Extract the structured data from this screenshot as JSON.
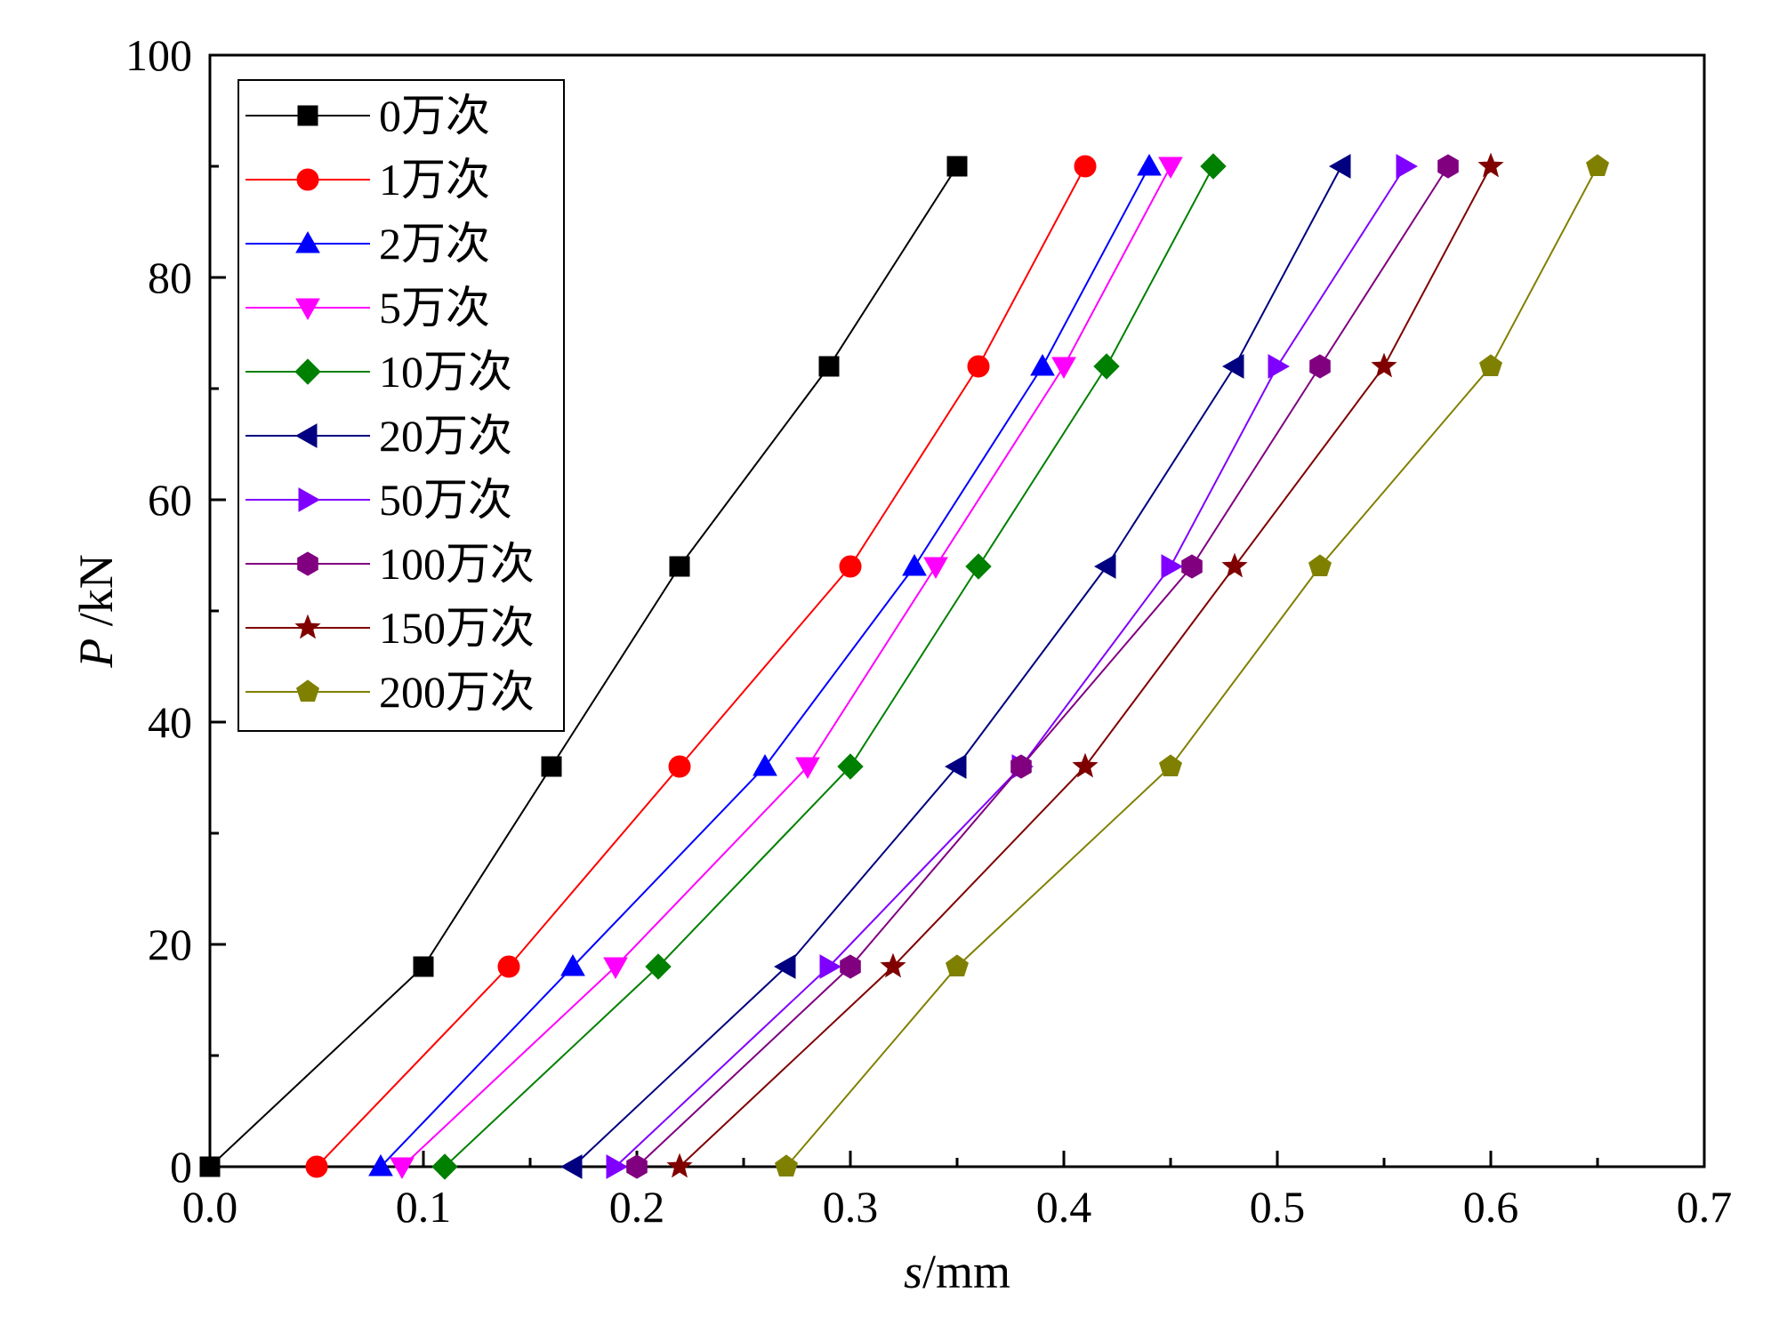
{
  "chart_data": {
    "type": "line",
    "xlabel_italic": "s",
    "xlabel_unit": "/mm",
    "ylabel_italic": "P",
    "ylabel_unit": " /kN",
    "xlim": [
      0,
      0.7
    ],
    "ylim": [
      0,
      100
    ],
    "x_major_ticks": [
      0.0,
      0.1,
      0.2,
      0.3,
      0.4,
      0.5,
      0.6,
      0.7
    ],
    "x_tick_labels": [
      "0.0",
      "0.1",
      "0.2",
      "0.3",
      "0.4",
      "0.5",
      "0.6",
      "0.7"
    ],
    "y_major_ticks": [
      0,
      20,
      40,
      60,
      80,
      100
    ],
    "y_tick_labels": [
      "0",
      "20",
      "40",
      "60",
      "80",
      "100"
    ],
    "x_minor_step": 0.05,
    "y_minor_step": 10,
    "legend_position": "top-left",
    "y": [
      0,
      18,
      36,
      54,
      72,
      90
    ],
    "series": [
      {
        "name": "0万次",
        "color": "#000000",
        "marker": "square",
        "x": [
          0.0,
          0.1,
          0.16,
          0.22,
          0.29,
          0.35
        ]
      },
      {
        "name": "1万次",
        "color": "#ff0000",
        "marker": "circle",
        "x": [
          0.05,
          0.14,
          0.22,
          0.3,
          0.36,
          0.41
        ]
      },
      {
        "name": "2万次",
        "color": "#0000ff",
        "marker": "triangle-up",
        "x": [
          0.08,
          0.17,
          0.26,
          0.33,
          0.39,
          0.44
        ]
      },
      {
        "name": "5万次",
        "color": "#ff00ff",
        "marker": "triangle-down",
        "x": [
          0.09,
          0.19,
          0.28,
          0.34,
          0.4,
          0.45
        ]
      },
      {
        "name": "10万次",
        "color": "#008000",
        "marker": "diamond",
        "x": [
          0.11,
          0.21,
          0.3,
          0.36,
          0.42,
          0.47
        ]
      },
      {
        "name": "20万次",
        "color": "#000080",
        "marker": "triangle-left",
        "x": [
          0.17,
          0.27,
          0.35,
          0.42,
          0.48,
          0.53
        ]
      },
      {
        "name": "50万次",
        "color": "#8000ff",
        "marker": "triangle-right",
        "x": [
          0.19,
          0.29,
          0.38,
          0.45,
          0.5,
          0.56
        ]
      },
      {
        "name": "100万次",
        "color": "#800080",
        "marker": "hexagon",
        "x": [
          0.2,
          0.3,
          0.38,
          0.46,
          0.52,
          0.58
        ]
      },
      {
        "name": "150万次",
        "color": "#800000",
        "marker": "star",
        "x": [
          0.22,
          0.32,
          0.41,
          0.48,
          0.55,
          0.6
        ]
      },
      {
        "name": "200万次",
        "color": "#808000",
        "marker": "pentagon",
        "x": [
          0.27,
          0.35,
          0.45,
          0.52,
          0.6,
          0.65
        ]
      }
    ]
  }
}
